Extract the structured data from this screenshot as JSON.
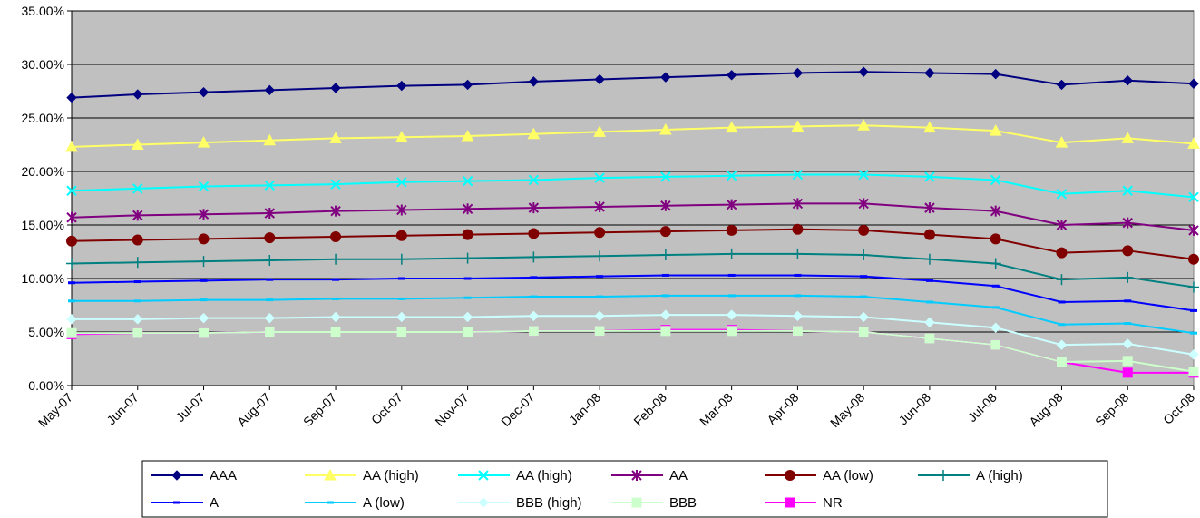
{
  "chart_data": {
    "type": "line",
    "title": "",
    "xlabel": "",
    "ylabel": "",
    "ylim": [
      0,
      0.35
    ],
    "yticks": [
      "0.00%",
      "5.00%",
      "10.00%",
      "15.00%",
      "20.00%",
      "25.00%",
      "30.00%",
      "35.00%"
    ],
    "grid": true,
    "legend_position": "bottom",
    "plot_background": "#c0c0c0",
    "categories": [
      "May-07",
      "Jun-07",
      "Jul-07",
      "Aug-07",
      "Sep-07",
      "Oct-07",
      "Nov-07",
      "Dec-07",
      "Jan-08",
      "Feb-08",
      "Mar-08",
      "Apr-08",
      "May-08",
      "Jun-08",
      "Jul-08",
      "Aug-08",
      "Sep-08",
      "Oct-08"
    ],
    "series": [
      {
        "name": "AAA",
        "color": "#000080",
        "marker": "diamond",
        "values": [
          0.269,
          0.272,
          0.274,
          0.276,
          0.278,
          0.28,
          0.281,
          0.284,
          0.286,
          0.288,
          0.29,
          0.292,
          0.293,
          0.292,
          0.291,
          0.281,
          0.285,
          0.282
        ]
      },
      {
        "name": "AA (high)",
        "color": "#ffff66",
        "marker": "triangle",
        "values": [
          0.223,
          0.225,
          0.227,
          0.229,
          0.231,
          0.232,
          0.233,
          0.235,
          0.237,
          0.239,
          0.241,
          0.242,
          0.243,
          0.241,
          0.238,
          0.227,
          0.231,
          0.226
        ]
      },
      {
        "name": "AA (high)",
        "color": "#00ffff",
        "marker": "x",
        "values": [
          0.182,
          0.184,
          0.186,
          0.187,
          0.188,
          0.19,
          0.191,
          0.192,
          0.194,
          0.195,
          0.196,
          0.197,
          0.197,
          0.195,
          0.192,
          0.179,
          0.182,
          0.176
        ]
      },
      {
        "name": "AA",
        "color": "#800080",
        "marker": "star",
        "values": [
          0.157,
          0.159,
          0.16,
          0.161,
          0.163,
          0.164,
          0.165,
          0.166,
          0.167,
          0.168,
          0.169,
          0.17,
          0.17,
          0.166,
          0.163,
          0.15,
          0.152,
          0.145
        ]
      },
      {
        "name": "AA (low)",
        "color": "#800000",
        "marker": "circle",
        "values": [
          0.135,
          0.136,
          0.137,
          0.138,
          0.139,
          0.14,
          0.141,
          0.142,
          0.143,
          0.144,
          0.145,
          0.146,
          0.145,
          0.141,
          0.137,
          0.124,
          0.126,
          0.118
        ]
      },
      {
        "name": "A (high)",
        "color": "#008080",
        "marker": "plus",
        "values": [
          0.114,
          0.115,
          0.116,
          0.117,
          0.118,
          0.118,
          0.119,
          0.12,
          0.121,
          0.122,
          0.123,
          0.123,
          0.122,
          0.118,
          0.114,
          0.099,
          0.101,
          0.092
        ]
      },
      {
        "name": "A",
        "color": "#0000ff",
        "marker": "dash",
        "values": [
          0.096,
          0.097,
          0.098,
          0.099,
          0.099,
          0.1,
          0.1,
          0.101,
          0.102,
          0.103,
          0.103,
          0.103,
          0.102,
          0.098,
          0.093,
          0.078,
          0.079,
          0.07
        ]
      },
      {
        "name": "A (low)",
        "color": "#00ccff",
        "marker": "dash",
        "values": [
          0.079,
          0.079,
          0.08,
          0.08,
          0.081,
          0.081,
          0.082,
          0.083,
          0.083,
          0.084,
          0.084,
          0.084,
          0.083,
          0.078,
          0.073,
          0.057,
          0.058,
          0.049
        ]
      },
      {
        "name": "BBB (high)",
        "color": "#ccffff",
        "marker": "diamond",
        "values": [
          0.062,
          0.062,
          0.063,
          0.063,
          0.064,
          0.064,
          0.064,
          0.065,
          0.065,
          0.066,
          0.066,
          0.065,
          0.064,
          0.059,
          0.054,
          0.038,
          0.039,
          0.029
        ]
      },
      {
        "name": "BBB",
        "color": "#ccffcc",
        "marker": "square",
        "values": [
          0.049,
          0.049,
          0.049,
          0.05,
          0.05,
          0.05,
          0.05,
          0.051,
          0.051,
          0.051,
          0.051,
          0.051,
          0.05,
          0.044,
          0.038,
          0.022,
          0.023,
          0.013
        ]
      },
      {
        "name": "NR",
        "color": "#ff00ff",
        "marker": "square",
        "values": [
          0.048,
          0.049,
          0.049,
          0.05,
          0.05,
          0.05,
          0.05,
          0.051,
          0.051,
          0.052,
          0.052,
          0.051,
          0.05,
          0.044,
          0.038,
          0.022,
          0.012,
          0.012
        ]
      }
    ]
  }
}
